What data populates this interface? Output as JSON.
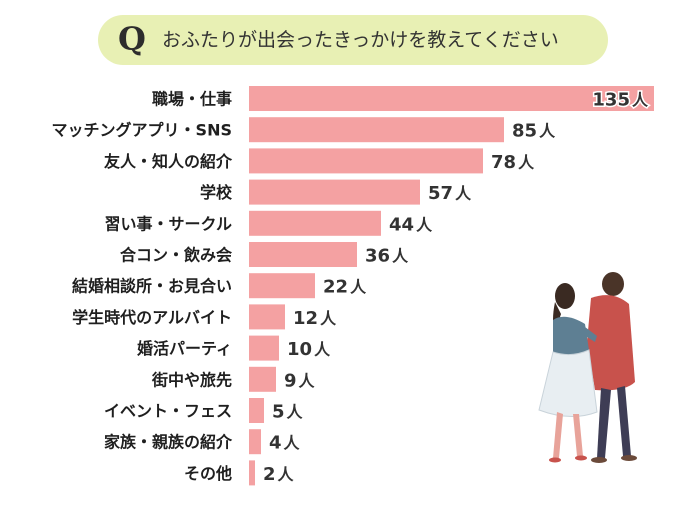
{
  "question": {
    "mark": "Q",
    "text": "おふたりが出会ったきっかけを教えてください"
  },
  "colors": {
    "bar": "#f4a1a2",
    "pill": "#e8f0b4",
    "text": "#1f1f1f"
  },
  "chart_data": {
    "type": "bar",
    "orientation": "horizontal",
    "title": "",
    "xlabel": "",
    "ylabel": "",
    "unit": "人",
    "xlim": [
      0,
      135
    ],
    "grid": false,
    "categories": [
      "職場・仕事",
      "マッチングアプリ・SNS",
      "友人・知人の紹介",
      "学校",
      "習い事・サークル",
      "合コン・飲み会",
      "結婚相談所・お見合い",
      "学生時代のアルバイト",
      "婚活パーティ",
      "街中や旅先",
      "イベント・フェス",
      "家族・親族の紹介",
      "その他"
    ],
    "values": [
      135,
      85,
      78,
      57,
      44,
      36,
      22,
      12,
      10,
      9,
      5,
      4,
      2
    ]
  }
}
